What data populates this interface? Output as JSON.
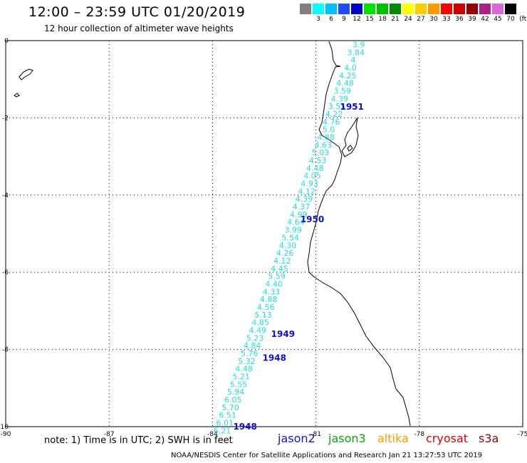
{
  "header": {
    "title": "12:00 – 23:59 UTC 01/20/2019",
    "subtitle": "12 hour collection of altimeter wave heights"
  },
  "color_scale": {
    "unit": "(ft)",
    "bins": [
      {
        "label": "",
        "color": "#7f7f7f"
      },
      {
        "label": "3",
        "color": "#00ffff"
      },
      {
        "label": "6",
        "color": "#00bfff"
      },
      {
        "label": "9",
        "color": "#1e4bff"
      },
      {
        "label": "12",
        "color": "#0000c8"
      },
      {
        "label": "15",
        "color": "#00e400"
      },
      {
        "label": "18",
        "color": "#00c000"
      },
      {
        "label": "21",
        "color": "#008a00"
      },
      {
        "label": "24",
        "color": "#ffff00"
      },
      {
        "label": "27",
        "color": "#ffcc00"
      },
      {
        "label": "30",
        "color": "#ff9900"
      },
      {
        "label": "33",
        "color": "#ff0000"
      },
      {
        "label": "36",
        "color": "#cc0000"
      },
      {
        "label": "39",
        "color": "#990000"
      },
      {
        "label": "42",
        "color": "#aa2288"
      },
      {
        "label": "45",
        "color": "#dd66dd"
      },
      {
        "label": "70",
        "color": "#000000"
      }
    ]
  },
  "map": {
    "lon_ticks": [
      -90,
      -87,
      -84,
      -81,
      -78,
      -75
    ],
    "lat_ticks": [
      0,
      -2,
      -4,
      -6,
      -8,
      -10
    ],
    "track_color": "#22dde8",
    "pass_color": "#1010c8",
    "wave_heights": [
      {
        "v": "3.9",
        "lat": -0.1
      },
      {
        "v": "3.84",
        "lat": -0.3
      },
      {
        "v": "4",
        "lat": -0.5
      },
      {
        "v": "4.0",
        "lat": -0.7
      },
      {
        "v": "4.25",
        "lat": -0.9
      },
      {
        "v": "4.48",
        "lat": -1.1
      },
      {
        "v": "3.59",
        "lat": -1.3
      },
      {
        "v": "4.39",
        "lat": -1.5
      },
      {
        "v": "3.55",
        "lat": -1.7
      },
      {
        "v": "4.22",
        "lat": -1.9
      },
      {
        "v": "4.76",
        "lat": -2.1
      },
      {
        "v": "5.0",
        "lat": -2.3
      },
      {
        "v": "4.88",
        "lat": -2.5
      },
      {
        "v": "4.63",
        "lat": -2.7
      },
      {
        "v": "5.03",
        "lat": -2.9
      },
      {
        "v": "4.53",
        "lat": -3.1
      },
      {
        "v": "4.48",
        "lat": -3.3
      },
      {
        "v": "4.05",
        "lat": -3.5
      },
      {
        "v": "4.93",
        "lat": -3.7
      },
      {
        "v": "4.12",
        "lat": -3.9
      },
      {
        "v": "4.39",
        "lat": -4.1
      },
      {
        "v": "4.37",
        "lat": -4.3
      },
      {
        "v": "4.99",
        "lat": -4.5
      },
      {
        "v": "4.64",
        "lat": -4.7
      },
      {
        "v": "3.99",
        "lat": -4.9
      },
      {
        "v": "5.54",
        "lat": -5.1
      },
      {
        "v": "4.30",
        "lat": -5.3
      },
      {
        "v": "4.26",
        "lat": -5.5
      },
      {
        "v": "4.12",
        "lat": -5.7
      },
      {
        "v": "4.45",
        "lat": -5.9
      },
      {
        "v": "5.59",
        "lat": -6.1
      },
      {
        "v": "4.40",
        "lat": -6.3
      },
      {
        "v": "4.33",
        "lat": -6.5
      },
      {
        "v": "4.88",
        "lat": -6.7
      },
      {
        "v": "4.56",
        "lat": -6.9
      },
      {
        "v": "5.13",
        "lat": -7.1
      },
      {
        "v": "4.85",
        "lat": -7.3
      },
      {
        "v": "4.49",
        "lat": -7.5
      },
      {
        "v": "5.23",
        "lat": -7.7
      },
      {
        "v": "4.84",
        "lat": -7.9
      },
      {
        "v": "5.76",
        "lat": -8.1
      },
      {
        "v": "5.32",
        "lat": -8.3
      },
      {
        "v": "4.48",
        "lat": -8.5
      },
      {
        "v": "5.21",
        "lat": -8.7
      },
      {
        "v": "5.55",
        "lat": -8.9
      },
      {
        "v": "5.94",
        "lat": -9.1
      },
      {
        "v": "6.05",
        "lat": -9.3
      },
      {
        "v": "5.70",
        "lat": -9.5
      },
      {
        "v": "6.51",
        "lat": -9.7
      },
      {
        "v": "6.01",
        "lat": -9.9
      },
      {
        "v": "6.21",
        "lat": -10.1
      }
    ],
    "passes": [
      {
        "label": "1951",
        "lon": -80.3,
        "lat": -1.72
      },
      {
        "label": "1950",
        "lon": -81.45,
        "lat": -4.63
      },
      {
        "label": "1949",
        "lon": -82.3,
        "lat": -7.6
      },
      {
        "label": "1948",
        "lon": -82.55,
        "lat": -8.22
      },
      {
        "label": "1948",
        "lon": -83.4,
        "lat": -10.0
      }
    ]
  },
  "footer": {
    "note": "note: 1) Time is in UTC; 2) SWH is in feet",
    "satellites": [
      {
        "name": "jason2",
        "color": "#1515d0"
      },
      {
        "name": "jason3",
        "color": "#10a010"
      },
      {
        "name": "altika",
        "color": "#ff9900"
      },
      {
        "name": "cryosat",
        "color": "#e00000"
      },
      {
        "name": "s3a",
        "color": "#8b0000"
      }
    ],
    "credit": "NOAA/NESDIS Center for Satellite Applications and Research    Jan 21 13:27:53 UTC 2019"
  }
}
